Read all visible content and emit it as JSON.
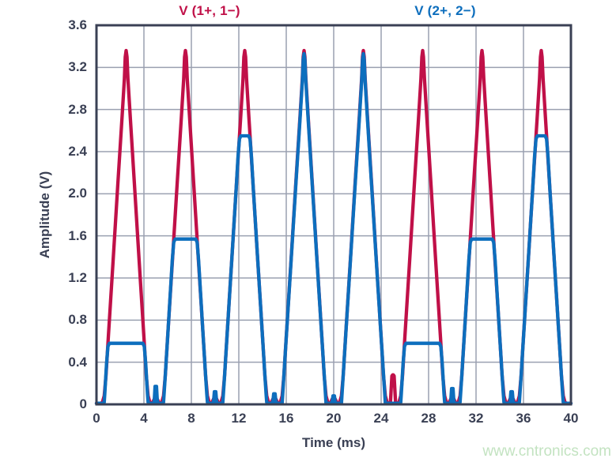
{
  "watermark": "www.cntronics.com",
  "colors": {
    "series1": "#c01048",
    "series2": "#0d6ebd",
    "frame": "#3a4054",
    "grid": "#9aa0b0",
    "text": "#3a4054",
    "watermark": "#c3e3c1",
    "background": "#ffffff"
  },
  "chart_data": {
    "type": "line",
    "title_left": "V (1+, 1−)",
    "title_right": "V (2+, 2−)",
    "xlabel": "Time (ms)",
    "ylabel": "Amplitude (V)",
    "xlim": [
      0,
      40
    ],
    "ylim": [
      0,
      3.6
    ],
    "xticks": [
      0,
      4,
      8,
      12,
      16,
      20,
      24,
      28,
      32,
      36,
      40
    ],
    "xtick_labels": [
      "0",
      "4",
      "8",
      "12",
      "16",
      "20",
      "24",
      "28",
      "32",
      "36",
      "40"
    ],
    "yticks": [
      0,
      0.4,
      0.8,
      1.2,
      1.6,
      2.0,
      2.4,
      2.8,
      3.2,
      3.6
    ],
    "ytick_labels": [
      "0",
      "0.4",
      "0.8",
      "1.2",
      "1.6",
      "2.0",
      "2.4",
      "2.8",
      "3.2",
      "3.6"
    ],
    "grid": true,
    "legend_position": "top",
    "pulse_centers_ms": [
      2.5,
      7.5,
      12.5,
      17.5,
      22.5,
      27.5,
      32.5,
      37.5
    ],
    "series": [
      {
        "name": "V (1+, 1−)",
        "color": "#c01048",
        "description": "triangular pulses, period 5 ms, peak 3.36 V",
        "peak_v": 3.36,
        "base_half_width_ms": 1.85,
        "pulse_half_profile": [
          [
            0.0,
            3.36
          ],
          [
            0.07,
            3.3
          ],
          [
            0.15,
            3.09
          ],
          [
            0.35,
            2.72
          ],
          [
            0.7,
            2.09
          ],
          [
            1.1,
            1.36
          ],
          [
            1.5,
            0.64
          ],
          [
            1.7,
            0.27
          ],
          [
            1.85,
            0.08
          ],
          [
            2.0,
            0.02
          ],
          [
            2.15,
            0.01
          ]
        ],
        "baseline_v": 0.01,
        "inter_pulse_bumps": [
          {
            "t": 5,
            "v": 0.05
          },
          {
            "t": 10,
            "v": 0.05
          },
          {
            "t": 15,
            "v": 0.05
          },
          {
            "t": 20,
            "v": 0.05
          },
          {
            "t": 25,
            "v": 0.28
          },
          {
            "t": 30,
            "v": 0.05
          },
          {
            "t": 35,
            "v": 0.05
          }
        ]
      },
      {
        "name": "V (2+, 2−)",
        "color": "#0d6ebd",
        "description": "same pulses clipped at stepped levels per cycle",
        "unclipped_peak_v": 3.33,
        "clip_levels_v": [
          0.58,
          1.57,
          2.55,
          3.33,
          3.33,
          0.58,
          1.57,
          2.55
        ],
        "baseline_v": 0.01,
        "inter_pulse_spikes": [
          {
            "t": 5,
            "v": 0.17
          },
          {
            "t": 10,
            "v": 0.12
          },
          {
            "t": 15,
            "v": 0.1
          },
          {
            "t": 20,
            "v": 0.08
          },
          {
            "t": 30,
            "v": 0.15
          },
          {
            "t": 35,
            "v": 0.12
          }
        ]
      }
    ]
  }
}
